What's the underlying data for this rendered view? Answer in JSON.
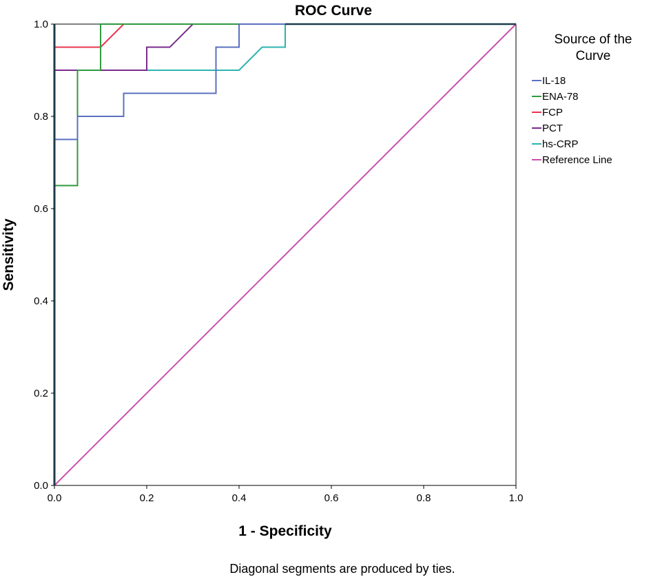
{
  "chart_data": {
    "type": "line",
    "title": "ROC Curve",
    "xlabel": "1 - Specificity",
    "ylabel": "Sensitivity",
    "xlim": [
      0,
      1
    ],
    "ylim": [
      0,
      1
    ],
    "xticks": [
      0.0,
      0.2,
      0.4,
      0.6,
      0.8,
      1.0
    ],
    "yticks": [
      0.0,
      0.2,
      0.4,
      0.6,
      0.8,
      1.0
    ],
    "xtick_labels": [
      "0.0",
      "0.2",
      "0.4",
      "0.6",
      "0.8",
      "1.0"
    ],
    "ytick_labels": [
      "0.0",
      "0.2",
      "0.4",
      "0.6",
      "0.8",
      "1.0"
    ],
    "grid": false,
    "legend": {
      "title": "Source of the Curve",
      "title_lines": [
        "Source of the",
        "Curve"
      ],
      "placement": "right"
    },
    "series": [
      {
        "name": "IL-18",
        "color": "#5a6fbf",
        "points": [
          [
            0,
            0
          ],
          [
            0,
            0.75
          ],
          [
            0.05,
            0.75
          ],
          [
            0.05,
            0.8
          ],
          [
            0.15,
            0.8
          ],
          [
            0.15,
            0.85
          ],
          [
            0.35,
            0.85
          ],
          [
            0.35,
            0.95
          ],
          [
            0.4,
            0.95
          ],
          [
            0.4,
            1
          ],
          [
            1,
            1
          ]
        ]
      },
      {
        "name": "ENA-78",
        "color": "#2e9a3e",
        "points": [
          [
            0,
            0
          ],
          [
            0,
            0.65
          ],
          [
            0.05,
            0.65
          ],
          [
            0.05,
            0.9
          ],
          [
            0.1,
            0.9
          ],
          [
            0.1,
            1
          ],
          [
            1,
            1
          ]
        ]
      },
      {
        "name": "FCP",
        "color": "#e8344e",
        "points": [
          [
            0,
            0
          ],
          [
            0,
            0.95
          ],
          [
            0.1,
            0.95
          ],
          [
            0.15,
            1
          ],
          [
            1,
            1
          ]
        ]
      },
      {
        "name": "PCT",
        "color": "#7a2a8c",
        "points": [
          [
            0,
            0
          ],
          [
            0,
            0.9
          ],
          [
            0.2,
            0.9
          ],
          [
            0.2,
            0.95
          ],
          [
            0.25,
            0.95
          ],
          [
            0.3,
            1
          ],
          [
            1,
            1
          ]
        ]
      },
      {
        "name": "hs-CRP",
        "color": "#2bb3b0",
        "points": [
          [
            0,
            0
          ],
          [
            0,
            0.9
          ],
          [
            0.4,
            0.9
          ],
          [
            0.45,
            0.95
          ],
          [
            0.5,
            0.95
          ],
          [
            0.5,
            1
          ],
          [
            1,
            1
          ]
        ]
      },
      {
        "name": "Reference Line",
        "color": "#cc4fb0",
        "points": [
          [
            0,
            0
          ],
          [
            1,
            1
          ]
        ]
      }
    ],
    "footnote": "Diagonal segments are produced by ties."
  }
}
